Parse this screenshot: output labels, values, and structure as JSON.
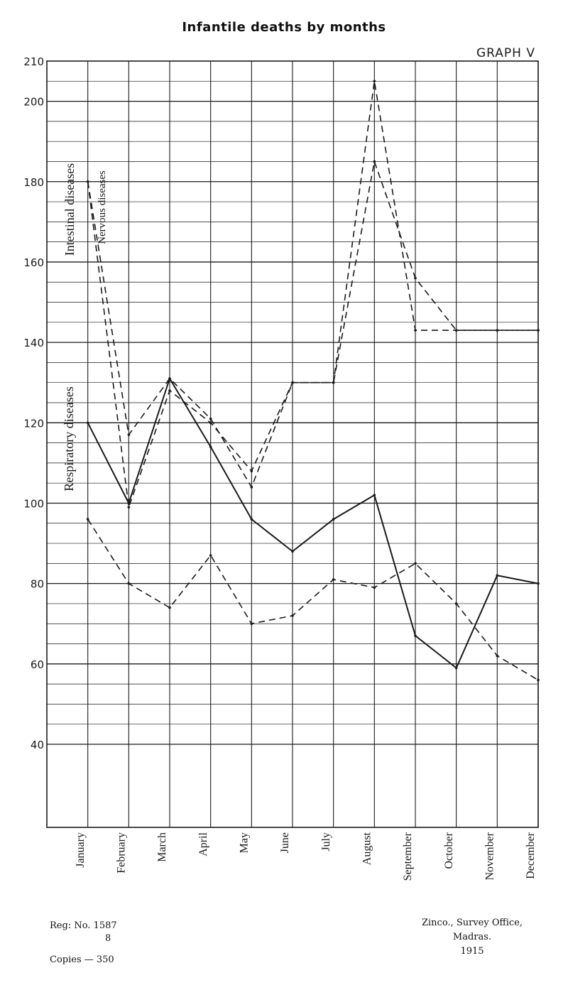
{
  "page": {
    "title": "Infantile deaths by months",
    "graph_label": "GRAPH V",
    "footer": {
      "reg": "Reg: No. 1587",
      "reg_sub": "8",
      "copies": "Copies — 350",
      "printer": "Zinco., Survey Office, Madras.",
      "year": "1915"
    }
  },
  "chart_data": {
    "type": "line",
    "title": "Infantile deaths by months",
    "xlabel": "",
    "ylabel": "",
    "categories": [
      "January",
      "February",
      "March",
      "April",
      "May",
      "June",
      "July",
      "August",
      "September",
      "October",
      "November",
      "December"
    ],
    "ylim": [
      40,
      210
    ],
    "yticks": [
      40,
      60,
      80,
      100,
      120,
      140,
      160,
      180,
      200,
      210
    ],
    "grid": true,
    "series": [
      {
        "name": "Intestinal diseases",
        "style": "dashed-ticked",
        "values": [
          180,
          99,
          128,
          120,
          108,
          130,
          130,
          205,
          143,
          143,
          143,
          143
        ]
      },
      {
        "name": "Nervous diseases",
        "style": "dashed-ticked",
        "values": [
          180,
          117,
          131,
          121,
          104,
          130,
          130,
          185,
          156,
          143,
          143,
          143
        ]
      },
      {
        "name": "Respiratory diseases",
        "style": "solid",
        "values": [
          120,
          100,
          131,
          114,
          96,
          88,
          96,
          102,
          67,
          59,
          82,
          80
        ]
      },
      {
        "name": "",
        "style": "dashed-ticked",
        "values": [
          96,
          80,
          74,
          87,
          70,
          72,
          81,
          79,
          85,
          75,
          62,
          56
        ]
      }
    ],
    "labels": [
      {
        "text": "Intestinal diseases"
      },
      {
        "text": "Nervous diseases"
      },
      {
        "text": "Respiratory diseases"
      }
    ]
  }
}
